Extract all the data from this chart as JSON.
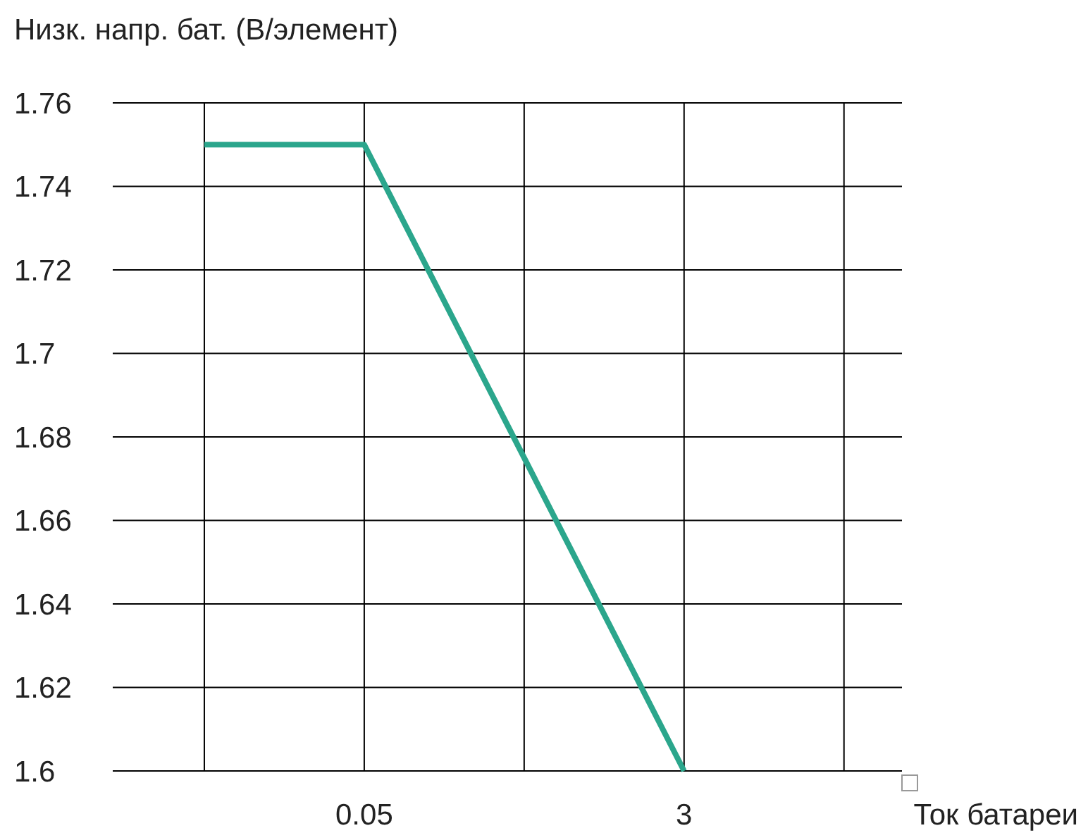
{
  "chart_data": {
    "type": "line",
    "ylabel": "Низк. напр. бат. (В/элемент)",
    "xlabel": "Ток батареи",
    "categories": [
      null,
      "0.05",
      null,
      "3",
      null
    ],
    "series": [
      {
        "color": "#2ba68c",
        "values": [
          1.75,
          1.75,
          1.675,
          1.6,
          null
        ]
      }
    ],
    "ylim": [
      1.6,
      1.76
    ],
    "yticks": [
      1.6,
      1.62,
      1.64,
      1.66,
      1.68,
      1.7,
      1.72,
      1.74,
      1.76
    ],
    "grid": true,
    "marker": "none",
    "line_style": "solid"
  }
}
